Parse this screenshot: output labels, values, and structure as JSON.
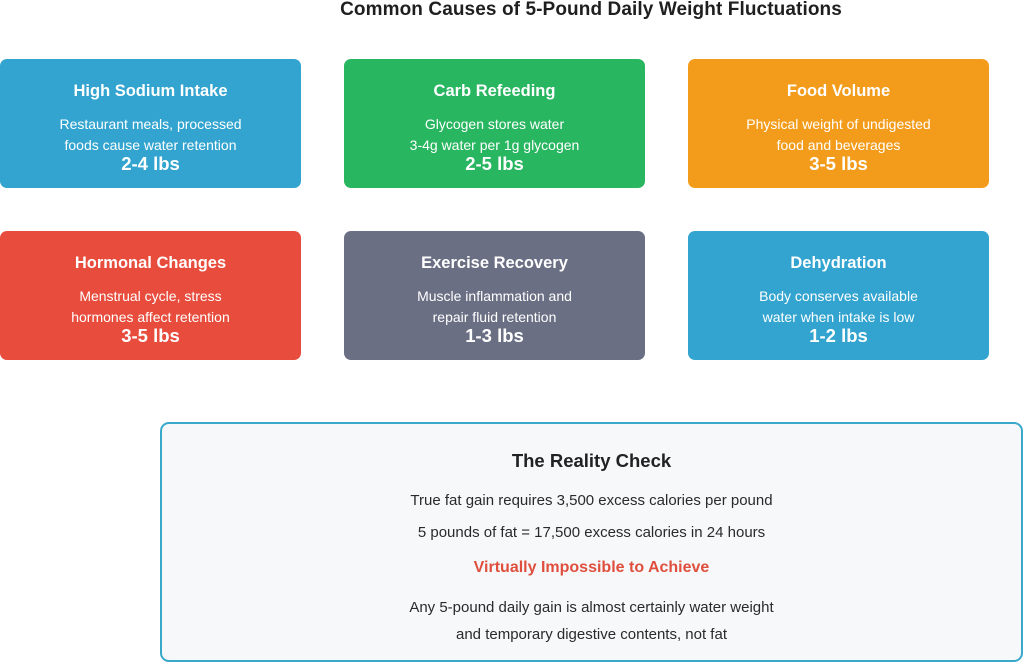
{
  "title": "Common Causes of 5-Pound Daily Weight Fluctuations",
  "colors": {
    "blue": "#32a4cf",
    "green": "#29b661",
    "orange": "#f39c1b",
    "red": "#e74c3c",
    "slate": "#6b6f84",
    "border": "#3aa8c9",
    "emphasis": "#e04f3d"
  },
  "cards": [
    {
      "title": "High Sodium Intake",
      "line1": "Restaurant meals, processed",
      "line2": "foods cause water retention",
      "value": "2-4 lbs",
      "color": "#32a4cf"
    },
    {
      "title": "Carb Refeeding",
      "line1": "Glycogen stores water",
      "line2": "3-4g water per 1g glycogen",
      "value": "2-5 lbs",
      "color": "#29b661"
    },
    {
      "title": "Food Volume",
      "line1": "Physical weight of undigested",
      "line2": "food and beverages",
      "value": "3-5 lbs",
      "color": "#f39c1b"
    },
    {
      "title": "Hormonal Changes",
      "line1": "Menstrual cycle, stress",
      "line2": "hormones affect retention",
      "value": "3-5 lbs",
      "color": "#e74c3c"
    },
    {
      "title": "Exercise Recovery",
      "line1": "Muscle inflammation and",
      "line2": "repair fluid retention",
      "value": "1-3 lbs",
      "color": "#6b6f84"
    },
    {
      "title": "Dehydration",
      "line1": "Body conserves available",
      "line2": "water when intake is low",
      "value": "1-2 lbs",
      "color": "#32a4cf"
    }
  ],
  "reality": {
    "title": "The Reality Check",
    "line1": "True fat gain requires 3,500 excess calories per pound",
    "line2": "5 pounds of fat = 17,500 excess calories in 24 hours",
    "emphasis": "Virtually Impossible to Achieve",
    "line3": "Any 5-pound daily gain is almost certainly water weight",
    "line4": "and temporary digestive contents, not fat"
  }
}
